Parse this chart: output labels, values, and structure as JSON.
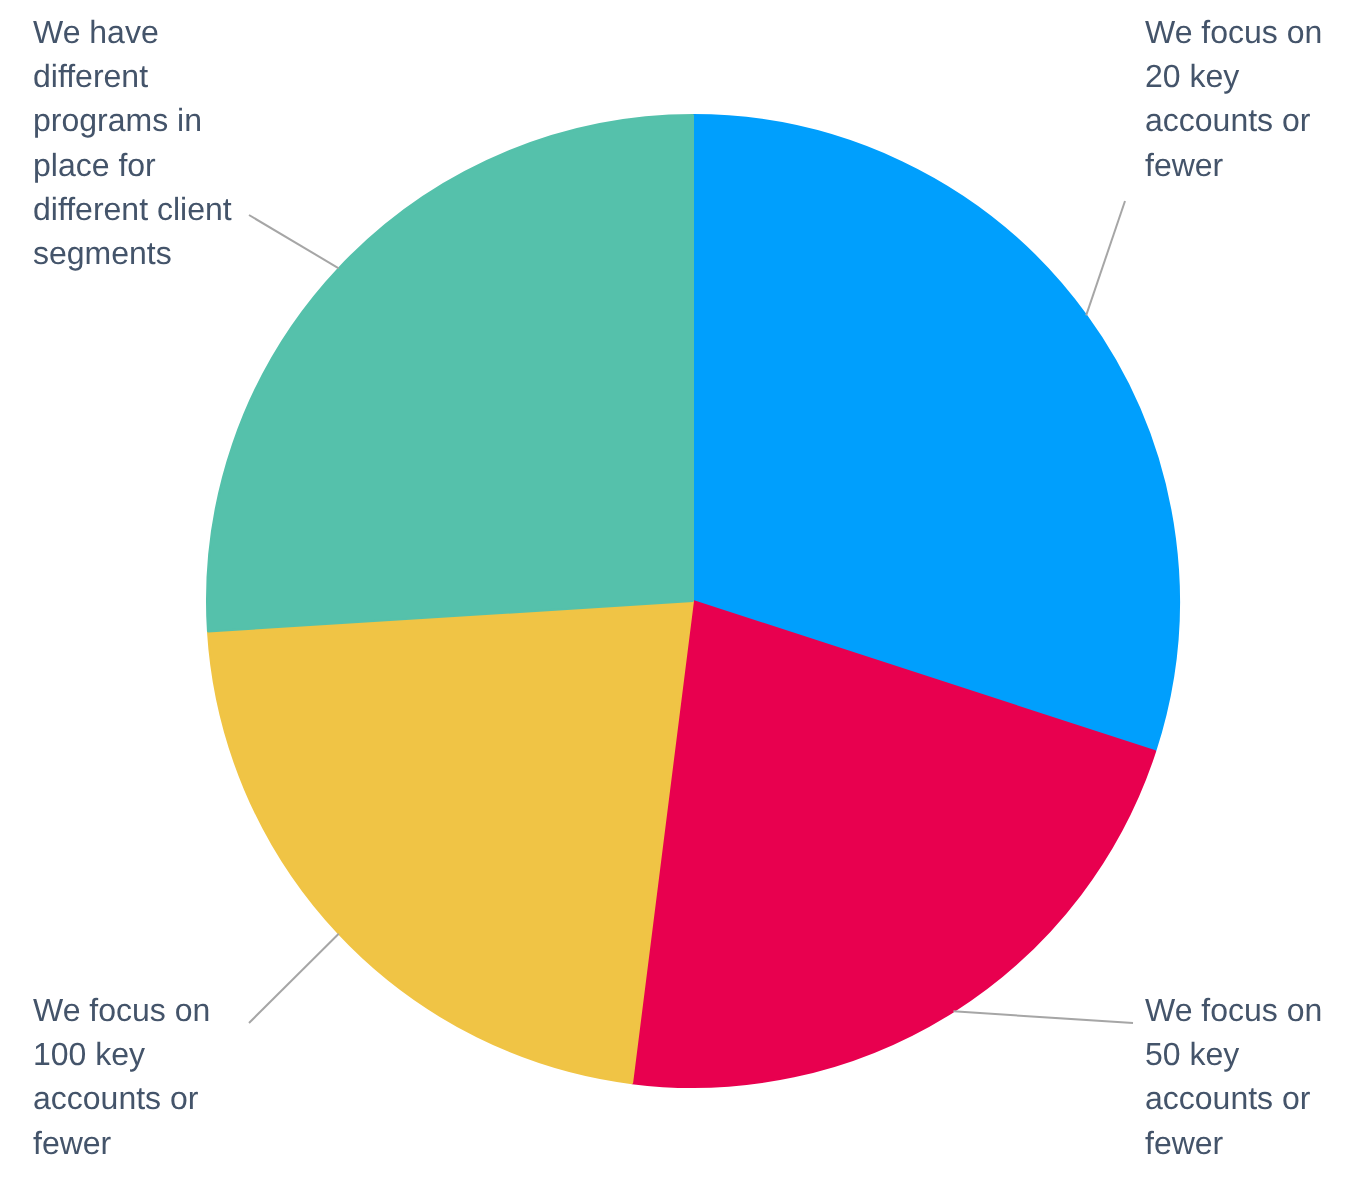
{
  "chart_data": {
    "type": "pie",
    "categories": [
      "We focus on 20 key accounts or fewer",
      "We focus on 50 key accounts or fewer",
      "We focus on 100 key accounts or fewer",
      "We have different programs in place for different client segments"
    ],
    "values": [
      30,
      22,
      22,
      26
    ],
    "colors": [
      "#009ffd",
      "#e8004f",
      "#f0c445",
      "#55c1ab"
    ]
  }
}
